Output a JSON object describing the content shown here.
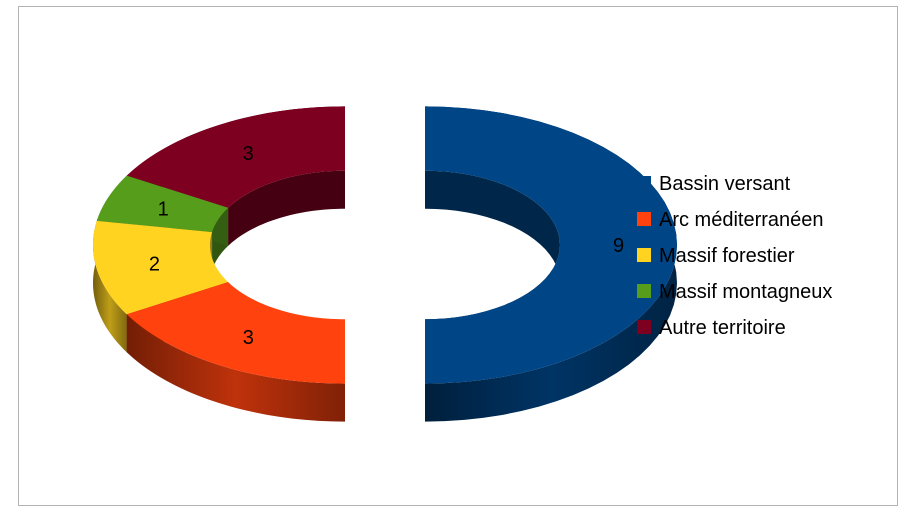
{
  "chart_data": {
    "type": "pie",
    "variant": "3d-exploded-donut",
    "title": "",
    "categories": [
      "Bassin versant",
      "Arc méditerranéen",
      "Massif forestier",
      "Massif montagneux",
      "Autre territoire"
    ],
    "values": [
      9,
      3,
      2,
      1,
      3
    ],
    "colors": [
      "#004586",
      "#ff420e",
      "#ffd320",
      "#579d1c",
      "#7e0021"
    ],
    "legend_position": "right",
    "show_value_labels": true
  }
}
